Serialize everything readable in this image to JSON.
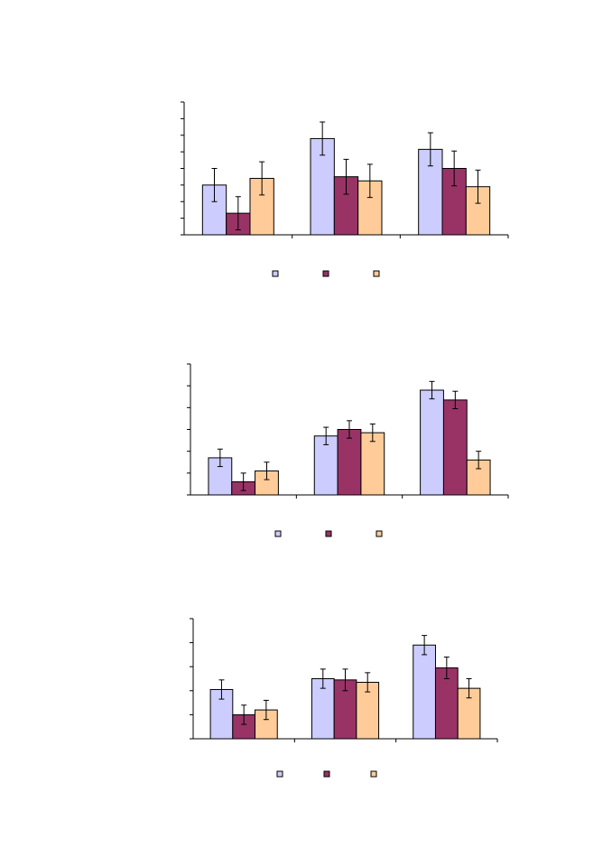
{
  "colors": {
    "series": [
      "#ccccff",
      "#993366",
      "#ffcc99"
    ],
    "stroke": "#000000",
    "background": "#ffffff"
  },
  "chart_data": [
    {
      "type": "bar",
      "error_bars": true,
      "legend_position": "bottom",
      "grid": false,
      "categories": [
        "",
        "",
        ""
      ],
      "ylim": [
        0,
        8
      ],
      "yticks": [
        0,
        1,
        2,
        3,
        4,
        5,
        6,
        7,
        8
      ],
      "series": [
        {
          "values": [
            3.0,
            5.8,
            5.15
          ],
          "errors": [
            1.0,
            1.0,
            1.0
          ]
        },
        {
          "values": [
            1.3,
            3.5,
            4.0
          ],
          "errors": [
            1.0,
            1.05,
            1.05
          ]
        },
        {
          "values": [
            3.4,
            3.25,
            2.9
          ],
          "errors": [
            1.0,
            1.0,
            1.0
          ]
        }
      ]
    },
    {
      "type": "bar",
      "error_bars": true,
      "legend_position": "bottom",
      "grid": false,
      "categories": [
        "",
        "",
        ""
      ],
      "ylim": [
        0,
        6
      ],
      "yticks": [
        0,
        1,
        2,
        3,
        4,
        5,
        6
      ],
      "series": [
        {
          "values": [
            1.7,
            2.7,
            4.8
          ],
          "errors": [
            0.4,
            0.4,
            0.4
          ]
        },
        {
          "values": [
            0.6,
            3.0,
            4.35
          ],
          "errors": [
            0.4,
            0.4,
            0.4
          ]
        },
        {
          "values": [
            1.1,
            2.85,
            1.6
          ],
          "errors": [
            0.4,
            0.4,
            0.4
          ]
        }
      ]
    },
    {
      "type": "bar",
      "error_bars": true,
      "legend_position": "bottom",
      "grid": false,
      "categories": [
        "",
        "",
        ""
      ],
      "ylim": [
        0,
        5
      ],
      "yticks": [
        0,
        1,
        2,
        3,
        4,
        5
      ],
      "series": [
        {
          "values": [
            2.05,
            2.5,
            3.9
          ],
          "errors": [
            0.4,
            0.4,
            0.4
          ]
        },
        {
          "values": [
            1.0,
            2.45,
            2.95
          ],
          "errors": [
            0.4,
            0.45,
            0.45
          ]
        },
        {
          "values": [
            1.2,
            2.35,
            2.1
          ],
          "errors": [
            0.4,
            0.4,
            0.4
          ]
        }
      ]
    }
  ]
}
